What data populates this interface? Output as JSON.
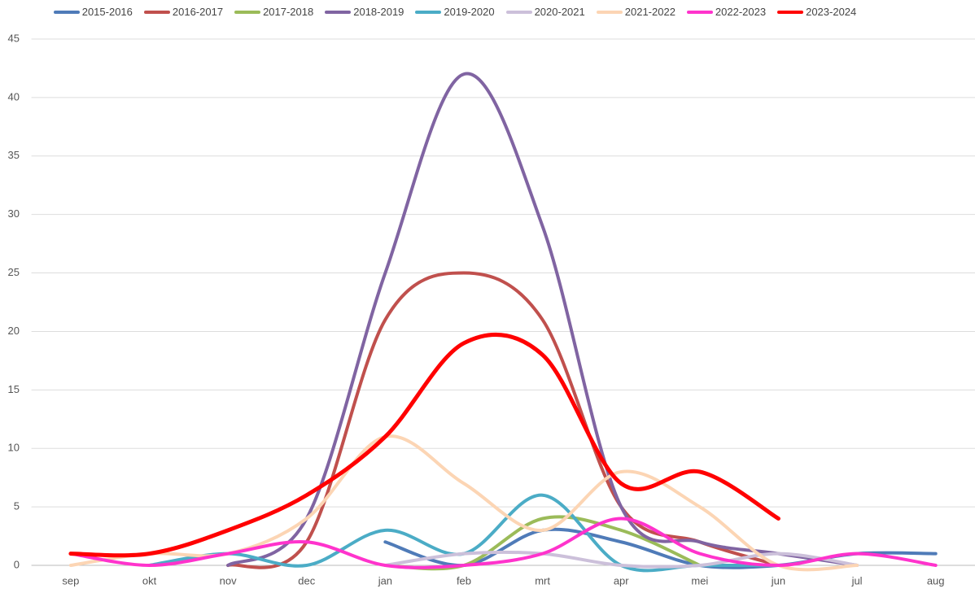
{
  "chart_data": {
    "type": "line",
    "categories": [
      "sep",
      "okt",
      "nov",
      "dec",
      "jan",
      "feb",
      "mrt",
      "apr",
      "mei",
      "jun",
      "jul",
      "aug"
    ],
    "series": [
      {
        "name": "2015-2016",
        "color": "#4f7bb8",
        "values": [
          null,
          null,
          null,
          null,
          2,
          0,
          3,
          2,
          0,
          0,
          1,
          1
        ]
      },
      {
        "name": "2016-2017",
        "color": "#c0504d",
        "values": [
          null,
          null,
          0,
          2,
          21,
          25,
          21,
          5,
          2,
          0,
          null,
          null
        ]
      },
      {
        "name": "2017-2018",
        "color": "#9bbb59",
        "values": [
          null,
          null,
          null,
          null,
          0,
          0,
          4,
          3,
          0,
          null,
          null,
          null
        ]
      },
      {
        "name": "2018-2019",
        "color": "#8064a2",
        "values": [
          null,
          null,
          0,
          4,
          25,
          42,
          29,
          5,
          2,
          1,
          0,
          null
        ]
      },
      {
        "name": "2019-2020",
        "color": "#4bacc6",
        "values": [
          null,
          0,
          1,
          0,
          3,
          1,
          6,
          0,
          0,
          0,
          null,
          null
        ]
      },
      {
        "name": "2020-2021",
        "color": "#ccc0da",
        "values": [
          null,
          null,
          null,
          null,
          0,
          1,
          1,
          0,
          0,
          1,
          0,
          null
        ]
      },
      {
        "name": "2021-2022",
        "color": "#fcd5b4",
        "values": [
          0,
          1,
          1,
          4,
          11,
          7,
          3,
          8,
          5,
          0,
          0,
          null
        ]
      },
      {
        "name": "2022-2023",
        "color": "#ff33cc",
        "values": [
          1,
          0,
          1,
          2,
          0,
          0,
          1,
          4,
          1,
          0,
          1,
          0
        ]
      },
      {
        "name": "2023-2024",
        "color": "#ff0000",
        "values": [
          1,
          1,
          3,
          6,
          11,
          19,
          18,
          7,
          8,
          4,
          null,
          null
        ]
      }
    ],
    "ylim": [
      0,
      45
    ],
    "yticks": [
      0,
      5,
      10,
      15,
      20,
      25,
      30,
      35,
      40,
      45
    ],
    "grid": true,
    "legend": "top"
  }
}
